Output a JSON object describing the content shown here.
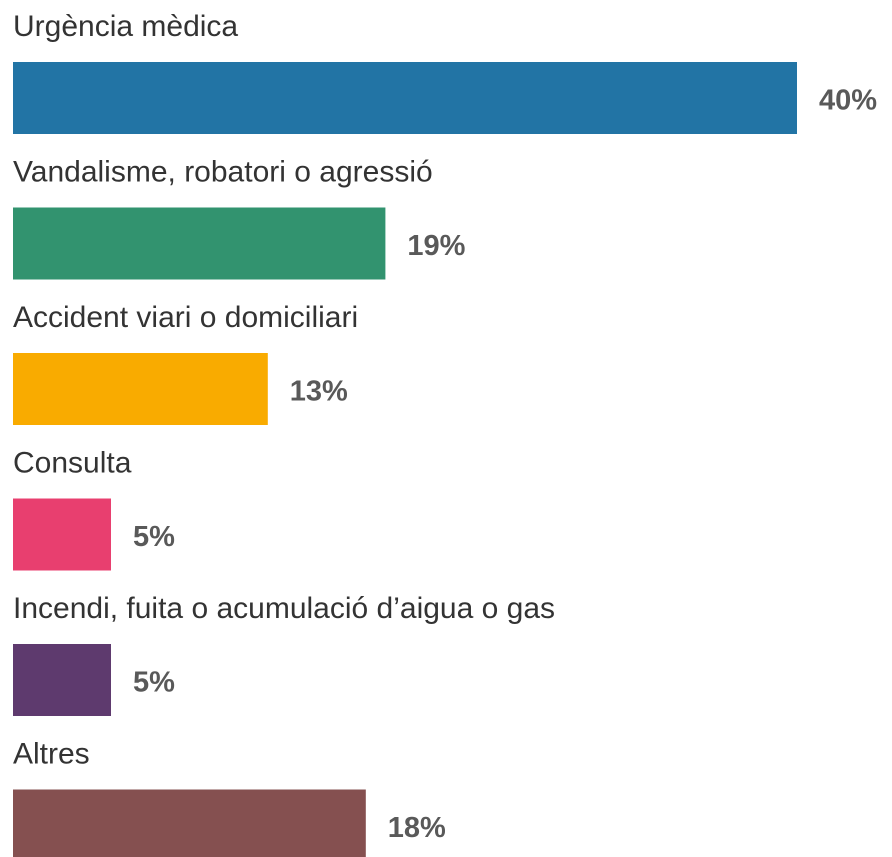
{
  "chart_data": {
    "type": "bar",
    "orientation": "horizontal",
    "categories": [
      "Urgència mèdica",
      "Vandalisme, robatori o agressió",
      "Accident viari o domiciliari",
      "Consulta",
      "Incendi, fuita o acumulació d’aigua o gas",
      "Altres"
    ],
    "values": [
      40,
      19,
      13,
      5,
      5,
      18
    ],
    "value_labels": [
      "40%",
      "19%",
      "13%",
      "5%",
      "5%",
      "18%"
    ],
    "colors": [
      "#2274a5",
      "#32936f",
      "#f9ab00",
      "#e83f6f",
      "#5e3a6e",
      "#855050"
    ]
  }
}
